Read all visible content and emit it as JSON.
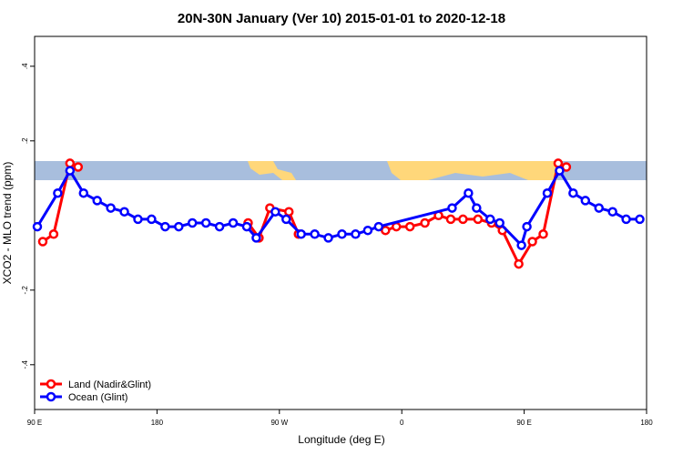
{
  "chart_data": {
    "type": "line",
    "title": "20N-30N January (Ver 10)   2015-01-01 to 2020-12-18",
    "x_label": "Longitude (deg E)",
    "y_label": "XCO2 - MLO trend (ppm)",
    "xlim": [
      90,
      540
    ],
    "xticks": [
      {
        "value": 90,
        "label": "90 E"
      },
      {
        "value": 180,
        "label": "180"
      },
      {
        "value": 270,
        "label": "90 W"
      },
      {
        "value": 360,
        "label": "0"
      },
      {
        "value": 450,
        "label": "90 E"
      },
      {
        "value": 540,
        "label": "180"
      }
    ],
    "ylim": [
      -0.52,
      0.48
    ],
    "yticks": [
      {
        "value": 0.4,
        "label": ".4"
      },
      {
        "value": 0.2,
        "label": ".2"
      },
      {
        "value": -0.2,
        "label": "-.2"
      },
      {
        "value": -0.4,
        "label": "-.4"
      }
    ],
    "legend": "bottom-left",
    "series": [
      {
        "name": "Land (Nadir&Glint)",
        "color": "#ff0000",
        "x": [
          96,
          104,
          116,
          122,
          200,
          247,
          255,
          263,
          277,
          284,
          320,
          348,
          356,
          366,
          377,
          387,
          396,
          405,
          416,
          426,
          434,
          446,
          456,
          464,
          475,
          481
        ],
        "values": [
          -0.07,
          -0.05,
          0.14,
          0.13,
          null,
          -0.02,
          -0.06,
          0.02,
          0.01,
          -0.05,
          null,
          -0.04,
          -0.03,
          -0.03,
          -0.02,
          0.0,
          -0.01,
          -0.01,
          -0.01,
          -0.02,
          -0.04,
          -0.13,
          -0.07,
          -0.05,
          0.14,
          0.13
        ]
      },
      {
        "name": "Ocean (Glint)",
        "color": "#0000ff",
        "x": [
          92,
          107,
          116,
          126,
          136,
          146,
          156,
          166,
          176,
          186,
          196,
          206,
          216,
          226,
          236,
          246,
          253,
          267,
          275,
          286,
          296,
          306,
          316,
          326,
          335,
          343,
          397,
          409,
          415,
          425,
          432,
          448,
          452,
          467,
          476,
          486,
          495,
          505,
          515,
          525,
          535
        ],
        "values": [
          -0.03,
          0.06,
          0.12,
          0.06,
          0.04,
          0.02,
          0.01,
          -0.01,
          -0.01,
          -0.03,
          -0.03,
          -0.02,
          -0.02,
          -0.03,
          -0.02,
          -0.03,
          -0.06,
          0.01,
          -0.01,
          -0.05,
          -0.05,
          -0.06,
          -0.05,
          -0.05,
          -0.04,
          -0.03,
          0.02,
          0.06,
          0.02,
          -0.01,
          -0.02,
          -0.08,
          -0.03,
          0.06,
          0.12,
          0.06,
          0.04,
          0.02,
          0.01,
          -0.01,
          -0.01
        ]
      }
    ]
  }
}
